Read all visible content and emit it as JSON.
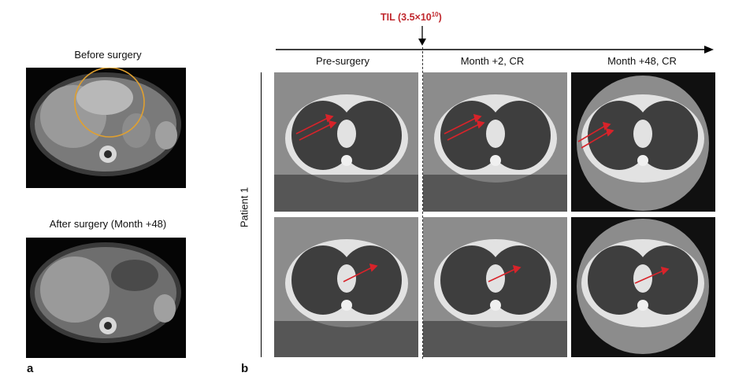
{
  "panel_a": {
    "letter": "a",
    "before_title": "Before surgery",
    "after_title": "After surgery (Month +48)"
  },
  "panel_b": {
    "letter": "b",
    "til_prefix": "TIL (3.5×10",
    "til_exp": "10",
    "til_suffix": ")",
    "columns": [
      "Pre-surgery",
      "Month +2, CR",
      "Month +48, CR"
    ],
    "row_label": "Patient 1"
  },
  "colors": {
    "annotation_red": "#c0282e",
    "circle_orange": "#e0a030",
    "arrow_red": "#d8232a"
  }
}
